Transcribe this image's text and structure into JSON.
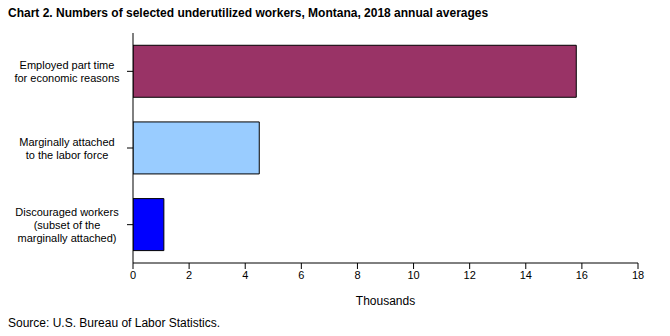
{
  "chart_data": {
    "type": "bar",
    "orientation": "horizontal",
    "title": "Chart 2. Numbers of selected underutilized workers, Montana, 2018 annual averages",
    "x_label": "Thousands",
    "source": "Source: U.S. Bureau of Labor Statistics.",
    "categories": [
      "Employed part time\nfor economic reasons",
      "Marginally attached\nto the labor force",
      "Discouraged workers\n(subset of the\nmarginally attached)"
    ],
    "values": [
      15.8,
      4.5,
      1.1
    ],
    "colors": [
      "#993366",
      "#99ccff",
      "#0000ff"
    ],
    "xlim": [
      0,
      18
    ],
    "xticks": [
      0,
      2,
      4,
      6,
      8,
      10,
      12,
      14,
      16,
      18
    ],
    "grid": false
  }
}
